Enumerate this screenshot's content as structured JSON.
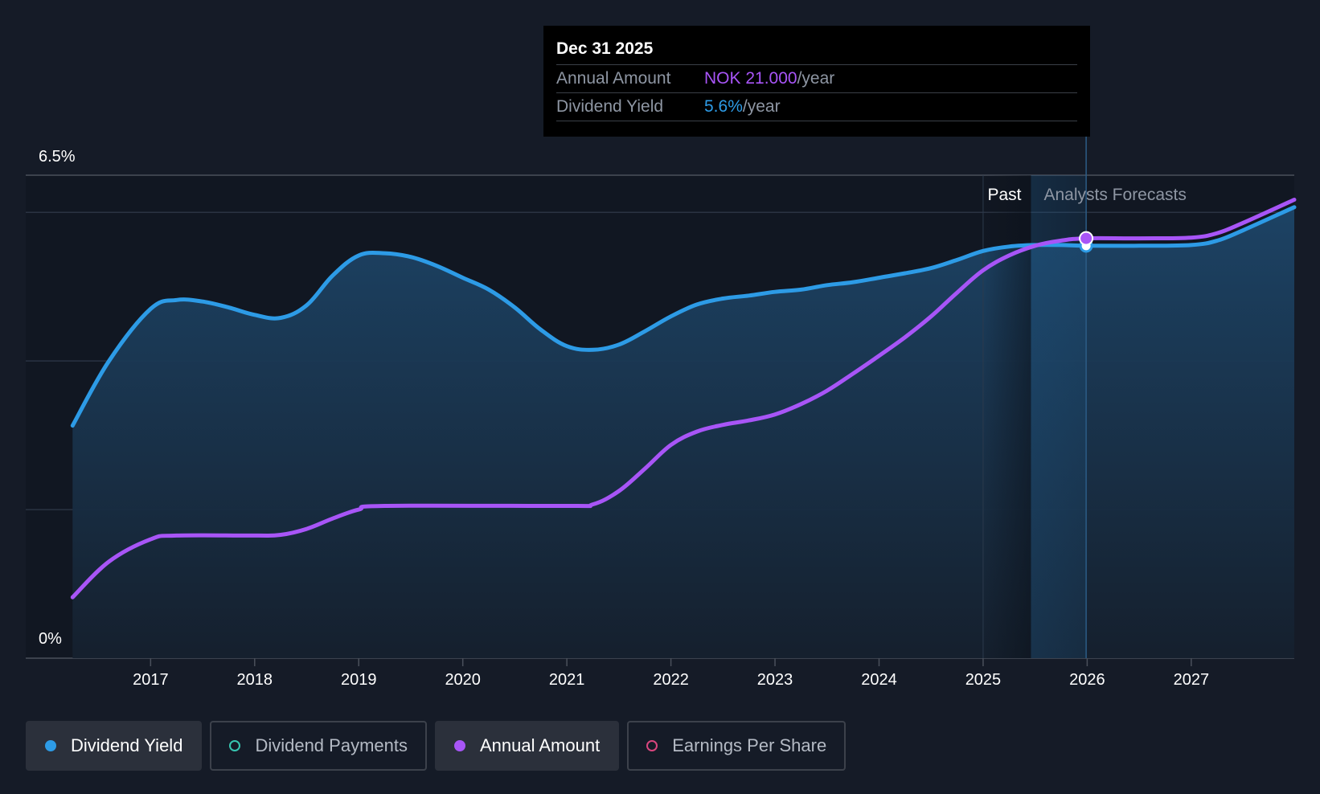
{
  "tooltip": {
    "date": "Dec 31 2025",
    "rows": [
      {
        "label": "Annual Amount",
        "value": "NOK 21.000",
        "unit": "/year",
        "color": "#a855f7"
      },
      {
        "label": "Dividend Yield",
        "value": "5.6%",
        "unit": "/year",
        "color": "#2d9be6"
      }
    ]
  },
  "legend": [
    {
      "label": "Dividend Yield",
      "active": true,
      "color": "#2d9be6",
      "marker": "filled"
    },
    {
      "label": "Dividend Payments",
      "active": false,
      "color": "#37c5b0",
      "marker": "hollow"
    },
    {
      "label": "Annual Amount",
      "active": true,
      "color": "#a855f7",
      "marker": "filled"
    },
    {
      "label": "Earnings Per Share",
      "active": false,
      "color": "#d9467e",
      "marker": "hollow"
    }
  ],
  "chart_data": {
    "type": "line",
    "y_axis": {
      "min": 0,
      "max": 6.5,
      "tick_labels": [
        "6.5%",
        "0%"
      ]
    },
    "x_axis": {
      "range": [
        2015.8,
        2027.99
      ],
      "ticks": [
        2017,
        2018,
        2019,
        2020,
        2021,
        2022,
        2023,
        2024,
        2025,
        2026,
        2027
      ]
    },
    "regions": {
      "past_label": "Past",
      "forecast_label": "Analysts Forecasts",
      "past_end": 2025.46,
      "cursor": 2025.99
    },
    "grid": true,
    "series": [
      {
        "name": "Dividend Yield",
        "color": "#2d9be6",
        "unit": "%",
        "points": [
          [
            2016.25,
            3.13
          ],
          [
            2016.6,
            4.0
          ],
          [
            2017.0,
            4.7
          ],
          [
            2017.25,
            4.82
          ],
          [
            2017.5,
            4.8
          ],
          [
            2017.75,
            4.72
          ],
          [
            2018.0,
            4.62
          ],
          [
            2018.25,
            4.58
          ],
          [
            2018.5,
            4.75
          ],
          [
            2018.75,
            5.15
          ],
          [
            2019.0,
            5.42
          ],
          [
            2019.25,
            5.45
          ],
          [
            2019.5,
            5.4
          ],
          [
            2019.75,
            5.28
          ],
          [
            2020.0,
            5.12
          ],
          [
            2020.25,
            4.96
          ],
          [
            2020.5,
            4.72
          ],
          [
            2020.75,
            4.42
          ],
          [
            2021.0,
            4.2
          ],
          [
            2021.25,
            4.15
          ],
          [
            2021.5,
            4.22
          ],
          [
            2021.75,
            4.4
          ],
          [
            2022.0,
            4.6
          ],
          [
            2022.25,
            4.76
          ],
          [
            2022.5,
            4.84
          ],
          [
            2022.75,
            4.88
          ],
          [
            2023.0,
            4.93
          ],
          [
            2023.25,
            4.96
          ],
          [
            2023.5,
            5.02
          ],
          [
            2023.75,
            5.06
          ],
          [
            2024.0,
            5.12
          ],
          [
            2024.25,
            5.18
          ],
          [
            2024.5,
            5.25
          ],
          [
            2024.75,
            5.36
          ],
          [
            2025.0,
            5.48
          ],
          [
            2025.25,
            5.54
          ],
          [
            2025.5,
            5.56
          ],
          [
            2025.75,
            5.56
          ],
          [
            2026.0,
            5.55
          ],
          [
            2026.5,
            5.55
          ],
          [
            2027.0,
            5.56
          ],
          [
            2027.25,
            5.62
          ],
          [
            2027.5,
            5.76
          ],
          [
            2027.99,
            6.07
          ]
        ]
      },
      {
        "name": "Annual Amount",
        "color": "#a855f7",
        "unit": "NOK",
        "points": [
          [
            2016.25,
            0.82
          ],
          [
            2016.6,
            1.3
          ],
          [
            2017.0,
            1.6
          ],
          [
            2017.25,
            1.65
          ],
          [
            2018.0,
            1.65
          ],
          [
            2018.25,
            1.66
          ],
          [
            2018.5,
            1.74
          ],
          [
            2018.75,
            1.88
          ],
          [
            2019.0,
            2.0
          ],
          [
            2019.25,
            2.05
          ],
          [
            2021.0,
            2.05
          ],
          [
            2021.25,
            2.07
          ],
          [
            2021.5,
            2.25
          ],
          [
            2021.75,
            2.55
          ],
          [
            2022.0,
            2.87
          ],
          [
            2022.25,
            3.05
          ],
          [
            2022.5,
            3.14
          ],
          [
            2022.75,
            3.2
          ],
          [
            2023.0,
            3.28
          ],
          [
            2023.25,
            3.42
          ],
          [
            2023.5,
            3.6
          ],
          [
            2023.75,
            3.83
          ],
          [
            2024.0,
            4.07
          ],
          [
            2024.25,
            4.32
          ],
          [
            2024.5,
            4.6
          ],
          [
            2024.75,
            4.92
          ],
          [
            2025.0,
            5.22
          ],
          [
            2025.25,
            5.42
          ],
          [
            2025.5,
            5.55
          ],
          [
            2025.75,
            5.62
          ],
          [
            2025.99,
            5.65
          ],
          [
            2026.5,
            5.65
          ],
          [
            2027.0,
            5.66
          ],
          [
            2027.25,
            5.72
          ],
          [
            2027.5,
            5.86
          ],
          [
            2027.99,
            6.17
          ]
        ]
      }
    ]
  }
}
